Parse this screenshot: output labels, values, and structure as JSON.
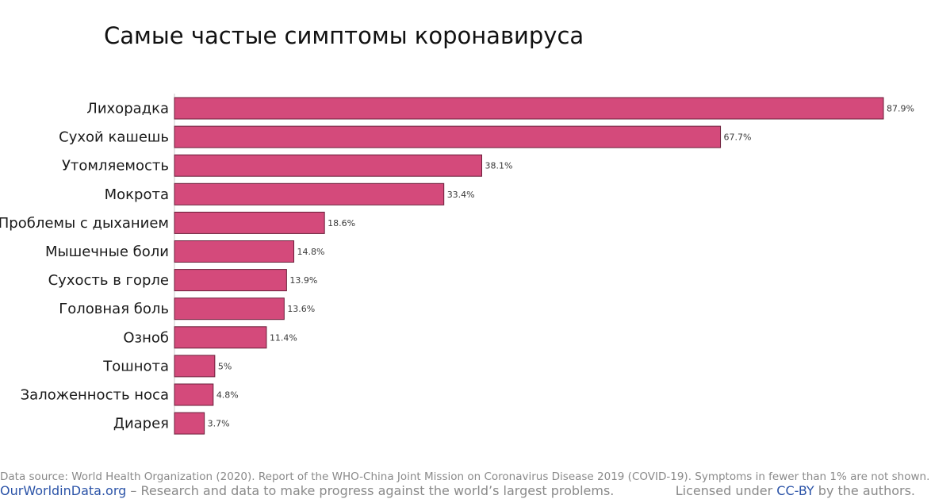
{
  "title": "Самые частые симптомы коронавируса",
  "chart_data": {
    "type": "bar",
    "orientation": "horizontal",
    "title": "Самые частые симптомы коронавируса",
    "xlabel": "",
    "ylabel": "",
    "xlim": [
      0,
      87.9
    ],
    "bar_color": "#d44a7b",
    "bar_stroke": "#6a1f3a",
    "categories": [
      "Лихорадка",
      "Сухой кашешь",
      "Утомляемость",
      "Мокрота",
      "Проблемы с дыханием",
      "Мышечные боли",
      "Сухость в горле",
      "Головная боль",
      "Озноб",
      "Тошнота",
      "Заложенность носа",
      "Диарея"
    ],
    "values": [
      87.9,
      67.7,
      38.1,
      33.4,
      18.6,
      14.8,
      13.9,
      13.6,
      11.4,
      5,
      4.8,
      3.7
    ],
    "value_labels": [
      "87.9%",
      "67.7%",
      "38.1%",
      "33.4%",
      "18.6%",
      "14.8%",
      "13.9%",
      "13.6%",
      "11.4%",
      "5%",
      "4.8%",
      "3.7%"
    ]
  },
  "footer": {
    "source": "Data source: World Health Organization (2020). Report of the WHO-China Joint Mission on Coronavirus Disease 2019 (COVID-19). Symptoms in fewer than 1% are not shown.",
    "site": "OurWorldinData.org",
    "tagline": " – Research and data to make progress against the world’s largest problems.",
    "license_prefix": "Licensed under ",
    "license_link": "CC-BY",
    "license_suffix": " by the authors."
  }
}
